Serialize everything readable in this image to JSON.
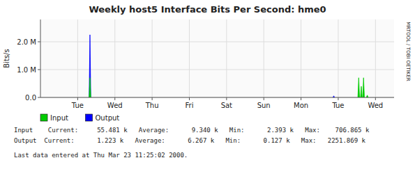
{
  "chart_data": {
    "type": "area",
    "title": "Weekly host5 Interface Bits Per Second: hme0",
    "y_label": "Bits/s",
    "xlim": [
      0,
      9.5
    ],
    "xticks": [
      {
        "value": 1,
        "label": "Tue"
      },
      {
        "value": 2,
        "label": "Wed"
      },
      {
        "value": 3,
        "label": "Thu"
      },
      {
        "value": 4,
        "label": "Fri"
      },
      {
        "value": 5,
        "label": "Sat"
      },
      {
        "value": 6,
        "label": "Sun"
      },
      {
        "value": 7,
        "label": "Mon"
      },
      {
        "value": 8,
        "label": "Tue"
      },
      {
        "value": 9,
        "label": "Wed"
      }
    ],
    "ylim": [
      0,
      2800000
    ],
    "yticks": [
      {
        "value": 0,
        "label": "0.0"
      },
      {
        "value": 1000000,
        "label": "1.0 M"
      },
      {
        "value": 2000000,
        "label": "2.0 M"
      }
    ],
    "grid": true,
    "legend": "bottom",
    "series": [
      {
        "name": "Output",
        "color": "#0000ff",
        "x": [
          1.33,
          7.88
        ],
        "values": [
          2251869,
          55000
        ]
      },
      {
        "name": "Input",
        "color": "#00cc00",
        "x": [
          1.33,
          8.55,
          8.62,
          8.68,
          8.78
        ],
        "values": [
          706865,
          706865,
          400000,
          706865,
          80000
        ]
      }
    ],
    "annotations": [
      "MRTOOL / TOBI OETIKER",
      "Input    Current:     55.481 k   Average:      9.340 k   Min:      2.393 k   Max:    706.865 k",
      "Output  Current:      1.223 k   Average:      6.267 k   Min:      0.127 k   Max:   2251.869 k",
      "Last data entered at Thu Mar 23 11:25:02 2000."
    ]
  }
}
